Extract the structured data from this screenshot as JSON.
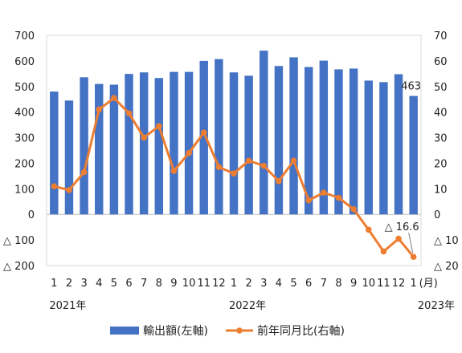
{
  "chart_data": {
    "type": "bar+line",
    "categories": [
      "1",
      "2",
      "3",
      "4",
      "5",
      "6",
      "7",
      "8",
      "9",
      "10",
      "11",
      "12",
      "1",
      "2",
      "3",
      "4",
      "5",
      "6",
      "7",
      "8",
      "9",
      "10",
      "11",
      "12",
      "1"
    ],
    "month_unit": "(月)",
    "year_labels": [
      {
        "text": "2021年",
        "at_index": 0
      },
      {
        "text": "2022年",
        "at_index": 12
      },
      {
        "text": "2023年",
        "at_index": 24
      }
    ],
    "left_axis": {
      "ylim": [
        -200,
        700
      ],
      "ticks": [
        700,
        600,
        500,
        400,
        300,
        200,
        100,
        0,
        -100,
        -200
      ],
      "tick_labels": [
        "700",
        "600",
        "500",
        "400",
        "300",
        "200",
        "100",
        "0",
        "△ 100",
        "△ 200"
      ]
    },
    "right_axis": {
      "ylim": [
        -20,
        70
      ],
      "ticks": [
        70,
        60,
        50,
        40,
        30,
        20,
        10,
        0,
        -10,
        -20
      ],
      "tick_labels": [
        "70",
        "60",
        "50",
        "40",
        "30",
        "20",
        "10",
        "0",
        "△ 10",
        "△ 20"
      ]
    },
    "series": [
      {
        "name": "輸出額(左軸)",
        "type": "bar",
        "axis": "left",
        "color": "#4472C4",
        "values": [
          480,
          445,
          536,
          510,
          507,
          549,
          555,
          533,
          557,
          557,
          600,
          607,
          555,
          542,
          640,
          580,
          614,
          576,
          601,
          567,
          570,
          523,
          517,
          548,
          463
        ]
      },
      {
        "name": "前年同月比(右軸)",
        "type": "line",
        "axis": "right",
        "color": "#ED7D31",
        "values": [
          11.0,
          9.5,
          16.5,
          41.0,
          45.5,
          39.5,
          30.0,
          34.5,
          17.0,
          24.0,
          32.0,
          18.5,
          16.0,
          21.0,
          19.0,
          13.0,
          21.0,
          5.5,
          8.5,
          6.5,
          2.0,
          -6.0,
          -14.5,
          -9.5,
          -16.6
        ]
      }
    ],
    "annotations": [
      {
        "text": "463",
        "series": 0,
        "index": 24
      },
      {
        "text": "△ 16.6",
        "series": 1,
        "index": 24
      }
    ],
    "legend": {
      "position": "bottom",
      "items": [
        "輸出額(左軸)",
        "前年同月比(右軸)"
      ]
    },
    "grid": false
  }
}
